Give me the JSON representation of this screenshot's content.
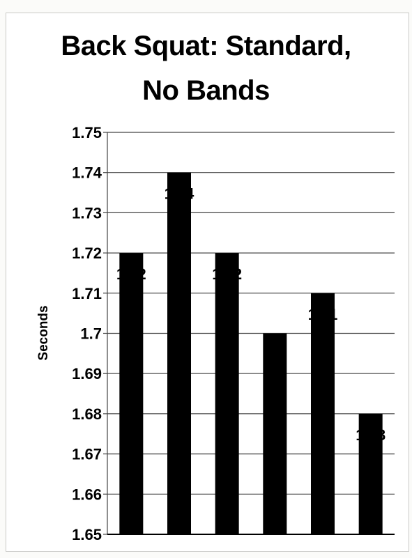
{
  "chart_data": {
    "type": "bar",
    "title_lines": [
      "Back Squat: Standard,",
      "No Bands"
    ],
    "ylabel": "Seconds",
    "xlabel": "",
    "ylim": [
      1.65,
      1.75
    ],
    "yticks": [
      "1.75",
      "1.74",
      "1.73",
      "1.72",
      "1.71",
      "1.7",
      "1.69",
      "1.68",
      "1.67",
      "1.66",
      "1.65"
    ],
    "values": [
      1.72,
      1.74,
      1.72,
      1.7,
      1.71,
      1.68
    ],
    "data_labels": [
      "1.72",
      "1.74",
      "1.72",
      "1.7",
      "1.71",
      "1.68"
    ],
    "grid": true,
    "legend": "none",
    "colors": {
      "bar": "#000000",
      "grid": "#444444",
      "text": "#000000"
    }
  }
}
